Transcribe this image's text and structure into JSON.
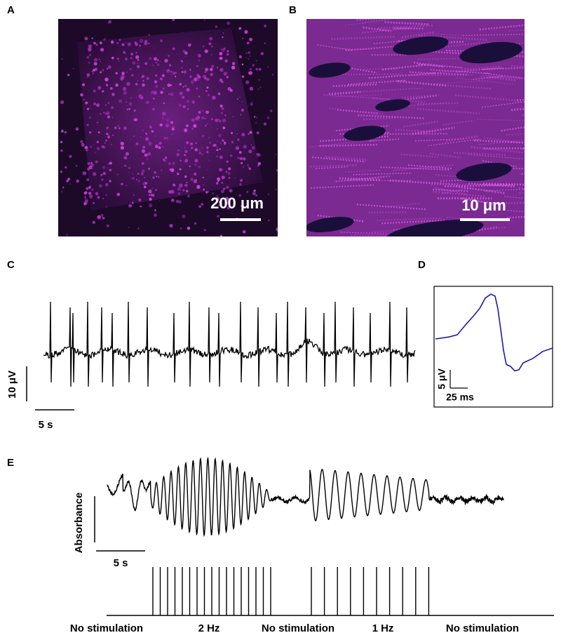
{
  "panel_a": {
    "label": "A",
    "scale_label": "200 μm"
  },
  "panel_b": {
    "label": "B",
    "scale_label": "10 μm"
  },
  "panel_c": {
    "label": "C",
    "y_scale": "10 μV",
    "x_scale": "5 s"
  },
  "panel_d": {
    "label": "D",
    "y_scale": "5 μV",
    "x_scale": "25 ms"
  },
  "panel_e": {
    "label": "E",
    "y_label": "Absorbance",
    "x_scale": "5 s",
    "stimulation_labels": [
      "No stimulation",
      "2 Hz",
      "No stimulation",
      "1 Hz",
      "No stimulation"
    ]
  }
}
